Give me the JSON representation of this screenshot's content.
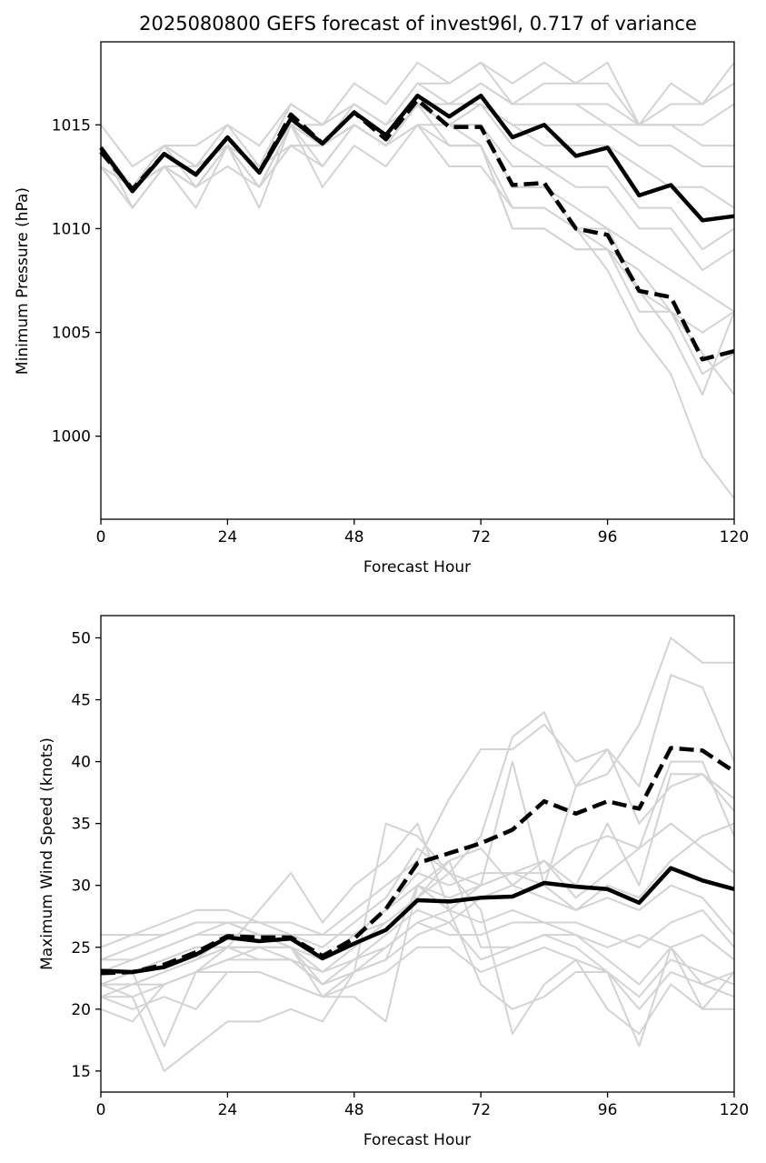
{
  "chart_data": [
    {
      "type": "line",
      "title": "2025080800 GEFS forecast of invest96l, 0.717 of variance",
      "xlabel": "Forecast Hour",
      "ylabel": "Minimum Pressure (hPa)",
      "xlim": [
        0,
        120
      ],
      "ylim": [
        996,
        1019
      ],
      "xticks": [
        0,
        24,
        48,
        72,
        96,
        120
      ],
      "yticks": [
        1000,
        1005,
        1010,
        1015
      ],
      "grid": false,
      "x": [
        0,
        6,
        12,
        18,
        24,
        30,
        36,
        42,
        48,
        54,
        60,
        66,
        72,
        78,
        84,
        90,
        96,
        102,
        108,
        114,
        120
      ],
      "highlight_series": [
        {
          "style": "solid",
          "color": "#000000",
          "values": [
            1013.9,
            1011.8,
            1013.6,
            1012.6,
            1014.4,
            1012.7,
            1015.3,
            1014.1,
            1015.6,
            1014.5,
            1016.4,
            1015.4,
            1016.4,
            1014.4,
            1015.0,
            1013.5,
            1013.9,
            1011.6,
            1012.1,
            1010.4,
            1010.6
          ]
        },
        {
          "style": "dashed",
          "color": "#000000",
          "values": [
            1013.7,
            1011.9,
            1013.6,
            1012.6,
            1014.4,
            1012.7,
            1015.5,
            1014.1,
            1015.6,
            1014.3,
            1016.2,
            1014.9,
            1014.9,
            1012.1,
            1012.2,
            1010.0,
            1009.7,
            1007.0,
            1006.7,
            1003.7,
            1004.1
          ]
        }
      ],
      "ensemble_color": "#d3d3d3",
      "ensemble_members": [
        [
          1015,
          1013,
          1014,
          1014,
          1015,
          1014,
          1016,
          1015,
          1017,
          1016,
          1018,
          1017,
          1018,
          1017,
          1018,
          1017,
          1018,
          1015,
          1017,
          1016,
          1018
        ],
        [
          1014,
          1012,
          1014,
          1013,
          1015,
          1013,
          1016,
          1015,
          1016,
          1015,
          1017,
          1017,
          1018,
          1016,
          1017,
          1017,
          1017,
          1015,
          1016,
          1016,
          1017
        ],
        [
          1014,
          1012,
          1014,
          1013,
          1014,
          1013,
          1015,
          1015,
          1016,
          1015,
          1017,
          1016,
          1017,
          1016,
          1016,
          1016,
          1016,
          1015,
          1015,
          1015,
          1016
        ],
        [
          1014,
          1012,
          1013,
          1013,
          1014,
          1013,
          1015,
          1014,
          1016,
          1015,
          1016,
          1016,
          1017,
          1016,
          1016,
          1016,
          1015,
          1015,
          1015,
          1014,
          1014
        ],
        [
          1013,
          1012,
          1013,
          1012,
          1014,
          1013,
          1015,
          1014,
          1015,
          1014,
          1016,
          1016,
          1016,
          1015,
          1015,
          1015,
          1015,
          1014,
          1014,
          1013,
          1013
        ],
        [
          1013,
          1011,
          1013,
          1012,
          1014,
          1012,
          1015,
          1014,
          1015,
          1014,
          1016,
          1015,
          1016,
          1015,
          1014,
          1014,
          1014,
          1013,
          1012,
          1012,
          1011
        ],
        [
          1013,
          1011,
          1013,
          1012,
          1014,
          1012,
          1014,
          1014,
          1015,
          1014,
          1016,
          1015,
          1016,
          1014,
          1013,
          1013,
          1013,
          1011,
          1011,
          1009,
          1010
        ],
        [
          1013,
          1011,
          1013,
          1012,
          1013,
          1012,
          1014,
          1013,
          1015,
          1014,
          1015,
          1015,
          1015,
          1013,
          1013,
          1012,
          1012,
          1010,
          1010,
          1008,
          1009
        ],
        [
          1014,
          1012,
          1014,
          1012,
          1014,
          1013,
          1015,
          1014,
          1015,
          1014,
          1016,
          1015,
          1015,
          1012,
          1012,
          1011,
          1010,
          1009,
          1008,
          1007,
          1006
        ],
        [
          1013,
          1012,
          1013,
          1013,
          1014,
          1013,
          1015,
          1014,
          1015,
          1014,
          1016,
          1015,
          1015,
          1012,
          1012,
          1010,
          1010,
          1007,
          1006,
          1005,
          1006
        ],
        [
          1014,
          1012,
          1013,
          1012,
          1014,
          1012,
          1015,
          1013,
          1015,
          1014,
          1016,
          1015,
          1014,
          1011,
          1011,
          1010,
          1009,
          1006,
          1006,
          1003,
          1004
        ],
        [
          1013,
          1011,
          1013,
          1012,
          1014,
          1012,
          1015,
          1014,
          1015,
          1014,
          1016,
          1014,
          1014,
          1010,
          1010,
          1009,
          1009,
          1007,
          1005,
          1002,
          1006
        ],
        [
          1014,
          1012,
          1013,
          1013,
          1014,
          1013,
          1014,
          1014,
          1015,
          1014,
          1015,
          1013,
          1013,
          1011,
          1011,
          1010,
          1008,
          1005,
          1003,
          999,
          997
        ],
        [
          1014,
          1011,
          1013,
          1011,
          1014,
          1011,
          1015,
          1012,
          1014,
          1013,
          1015,
          1014,
          1014,
          1010,
          1010,
          1009,
          1009,
          1008,
          1006,
          1004,
          1002
        ]
      ]
    },
    {
      "type": "line",
      "title": "",
      "xlabel": "Forecast Hour",
      "ylabel": "Maximum Wind Speed (knots)",
      "xlim": [
        0,
        120
      ],
      "ylim": [
        13.3,
        51.8
      ],
      "xticks": [
        0,
        24,
        48,
        72,
        96,
        120
      ],
      "yticks": [
        15,
        20,
        25,
        30,
        35,
        40,
        45,
        50
      ],
      "grid": false,
      "x": [
        0,
        6,
        12,
        18,
        24,
        30,
        36,
        42,
        48,
        54,
        60,
        66,
        72,
        78,
        84,
        90,
        96,
        102,
        108,
        114,
        120
      ],
      "highlight_series": [
        {
          "style": "solid",
          "color": "#000000",
          "values": [
            23.1,
            23.0,
            23.4,
            24.4,
            25.8,
            25.5,
            25.7,
            24.1,
            25.3,
            26.4,
            28.8,
            28.7,
            29.0,
            29.1,
            30.2,
            29.9,
            29.7,
            28.6,
            31.4,
            30.4,
            29.7
          ]
        },
        {
          "style": "dashed",
          "color": "#000000",
          "values": [
            22.9,
            23.0,
            23.6,
            24.6,
            25.9,
            25.8,
            25.8,
            24.3,
            25.7,
            28.1,
            31.8,
            32.6,
            33.4,
            34.5,
            36.8,
            35.8,
            36.8,
            36.2,
            41.1,
            40.9,
            39.2
          ]
        }
      ],
      "ensemble_color": "#d3d3d3",
      "ensemble_members": [
        [
          26,
          26,
          27,
          28,
          28,
          27,
          27,
          26,
          26,
          27,
          29,
          31,
          34,
          42,
          44,
          38,
          39,
          43,
          50,
          48,
          48
        ],
        [
          25,
          26,
          26,
          27,
          27,
          26,
          26,
          26,
          28,
          30,
          32,
          37,
          41,
          41,
          43,
          40,
          41,
          38,
          47,
          46,
          40
        ],
        [
          24,
          25,
          26,
          27,
          27,
          27,
          26,
          25,
          27,
          29,
          33,
          31,
          30,
          40,
          30,
          38,
          41,
          35,
          38,
          39,
          36
        ],
        [
          24,
          24,
          25,
          26,
          27,
          26,
          26,
          24,
          26,
          28,
          31,
          30,
          31,
          31,
          31,
          33,
          34,
          33,
          40,
          40,
          34
        ],
        [
          23,
          24,
          25,
          26,
          26,
          26,
          25,
          23,
          25,
          27,
          29,
          32,
          33,
          30,
          32,
          29,
          31,
          33,
          35,
          33,
          31
        ],
        [
          23,
          23,
          24,
          25,
          25,
          25,
          25,
          24,
          26,
          28,
          30,
          29,
          30,
          31,
          30,
          28,
          30,
          29,
          32,
          34,
          35
        ],
        [
          22,
          23,
          24,
          25,
          25,
          24,
          24,
          23,
          24,
          26,
          28,
          27,
          29,
          30,
          29,
          28,
          29,
          28,
          30,
          29,
          26
        ],
        [
          22,
          22,
          23,
          24,
          25,
          25,
          24,
          22,
          24,
          25,
          27,
          28,
          27,
          28,
          27,
          27,
          26,
          25,
          27,
          28,
          25
        ],
        [
          21,
          22,
          22,
          23,
          24,
          24,
          24,
          22,
          23,
          25,
          27,
          26,
          26,
          27,
          27,
          26,
          25,
          26,
          25,
          26,
          24
        ],
        [
          22,
          22,
          23,
          24,
          26,
          26,
          25,
          21,
          23,
          24,
          30,
          32,
          25,
          25,
          26,
          26,
          24,
          22,
          25,
          22,
          23
        ],
        [
          21,
          21,
          22,
          23,
          24,
          25,
          25,
          22,
          23,
          24,
          26,
          27,
          24,
          25,
          26,
          25,
          23,
          21,
          24,
          23,
          22
        ],
        [
          20,
          19,
          22,
          23,
          23,
          23,
          22,
          21,
          22,
          23,
          25,
          25,
          23,
          24,
          25,
          24,
          23,
          20,
          23,
          22,
          21
        ],
        [
          21,
          20,
          21,
          20,
          23,
          23,
          22,
          21,
          21,
          19,
          30,
          28,
          22,
          20,
          21,
          23,
          23,
          17,
          25,
          20,
          23
        ],
        [
          22,
          21,
          15,
          17,
          19,
          19,
          20,
          19,
          23,
          35,
          34,
          31,
          28,
          18,
          22,
          24,
          20,
          18,
          22,
          20,
          20
        ],
        [
          23,
          23,
          17,
          23,
          25,
          28,
          31,
          27,
          30,
          32,
          35,
          28,
          30,
          31,
          32,
          30,
          35,
          30,
          39,
          39,
          37
        ]
      ]
    }
  ]
}
